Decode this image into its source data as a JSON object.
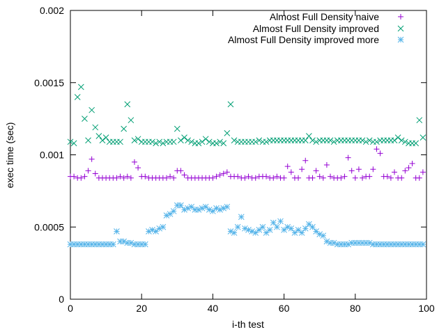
{
  "chart_data": {
    "type": "scatter",
    "title": "",
    "xlabel": "i-th test",
    "ylabel": "exec time (sec)",
    "xlim": [
      0,
      100
    ],
    "ylim": [
      0,
      0.002
    ],
    "x_ticks": [
      0,
      20,
      40,
      60,
      80,
      100
    ],
    "x_tick_labels": [
      "0",
      "20",
      "40",
      "60",
      "80",
      "100"
    ],
    "y_ticks": [
      0,
      0.0005,
      0.001,
      0.0015,
      0.002
    ],
    "y_tick_labels": [
      "0",
      "0.0005",
      "0.001",
      "0.0015",
      "0.002"
    ],
    "grid": false,
    "legend_position": "top-right",
    "series": [
      {
        "name": "Almost Full Density naive",
        "marker": "plus",
        "color": "#9400d3",
        "x": [
          0,
          1,
          2,
          3,
          4,
          5,
          6,
          7,
          8,
          9,
          10,
          11,
          12,
          13,
          14,
          15,
          16,
          17,
          18,
          19,
          20,
          21,
          22,
          23,
          24,
          25,
          26,
          27,
          28,
          29,
          30,
          31,
          32,
          33,
          34,
          35,
          36,
          37,
          38,
          39,
          40,
          41,
          42,
          43,
          44,
          45,
          46,
          47,
          48,
          49,
          50,
          51,
          52,
          53,
          54,
          55,
          56,
          57,
          58,
          59,
          60,
          61,
          62,
          63,
          64,
          65,
          66,
          67,
          68,
          69,
          70,
          71,
          72,
          73,
          74,
          75,
          76,
          77,
          78,
          79,
          80,
          81,
          82,
          83,
          84,
          85,
          86,
          87,
          88,
          89,
          90,
          91,
          92,
          93,
          94,
          95,
          96,
          97,
          98,
          99
        ],
        "y": [
          0.00085,
          0.00085,
          0.00084,
          0.00084,
          0.00085,
          0.00089,
          0.00097,
          0.00087,
          0.00084,
          0.00084,
          0.00084,
          0.00084,
          0.00084,
          0.00084,
          0.00085,
          0.00084,
          0.00085,
          0.00084,
          0.00095,
          0.00091,
          0.00085,
          0.00085,
          0.00084,
          0.00084,
          0.00084,
          0.00084,
          0.00084,
          0.00084,
          0.00085,
          0.00084,
          0.00089,
          0.00089,
          0.00086,
          0.00084,
          0.00084,
          0.00084,
          0.00084,
          0.00084,
          0.00084,
          0.00084,
          0.00084,
          0.00085,
          0.00086,
          0.00087,
          0.00088,
          0.00085,
          0.00085,
          0.00085,
          0.00084,
          0.00084,
          0.00085,
          0.00084,
          0.00084,
          0.00085,
          0.00085,
          0.00085,
          0.00084,
          0.00084,
          0.00085,
          0.00084,
          0.00084,
          0.00092,
          0.00088,
          0.00084,
          0.00084,
          0.0009,
          0.00096,
          0.00084,
          0.00084,
          0.00089,
          0.00085,
          0.00084,
          0.00093,
          0.00085,
          0.00084,
          0.00084,
          0.00084,
          0.00085,
          0.00098,
          0.00089,
          0.00084,
          0.0009,
          0.00084,
          0.00085,
          0.00085,
          0.0009,
          0.00104,
          0.00101,
          0.00085,
          0.00085,
          0.00084,
          0.00088,
          0.00084,
          0.00084,
          0.00089,
          0.00091,
          0.00094,
          0.00084,
          0.00084,
          0.00088
        ]
      },
      {
        "name": "Almost Full Density improved",
        "marker": "cross",
        "color": "#009e73",
        "x": [
          0,
          1,
          2,
          3,
          4,
          5,
          6,
          7,
          8,
          9,
          10,
          11,
          12,
          13,
          14,
          15,
          16,
          17,
          18,
          19,
          20,
          21,
          22,
          23,
          24,
          25,
          26,
          27,
          28,
          29,
          30,
          31,
          32,
          33,
          34,
          35,
          36,
          37,
          38,
          39,
          40,
          41,
          42,
          43,
          44,
          45,
          46,
          47,
          48,
          49,
          50,
          51,
          52,
          53,
          54,
          55,
          56,
          57,
          58,
          59,
          60,
          61,
          62,
          63,
          64,
          65,
          66,
          67,
          68,
          69,
          70,
          71,
          72,
          73,
          74,
          75,
          76,
          77,
          78,
          79,
          80,
          81,
          82,
          83,
          84,
          85,
          86,
          87,
          88,
          89,
          90,
          91,
          92,
          93,
          94,
          95,
          96,
          97,
          98,
          99
        ],
        "y": [
          0.00109,
          0.00108,
          0.0014,
          0.00147,
          0.00125,
          0.0011,
          0.00131,
          0.00119,
          0.00113,
          0.0011,
          0.00112,
          0.00109,
          0.00109,
          0.00109,
          0.00109,
          0.00118,
          0.00135,
          0.00124,
          0.0011,
          0.00111,
          0.00109,
          0.00109,
          0.00109,
          0.00109,
          0.00108,
          0.00109,
          0.00108,
          0.00109,
          0.00109,
          0.00109,
          0.00118,
          0.0011,
          0.00112,
          0.0011,
          0.00109,
          0.00108,
          0.00108,
          0.00109,
          0.00111,
          0.00109,
          0.00108,
          0.00108,
          0.00109,
          0.00108,
          0.00115,
          0.00135,
          0.0011,
          0.00109,
          0.00109,
          0.00109,
          0.00109,
          0.00109,
          0.00109,
          0.0011,
          0.00109,
          0.00109,
          0.0011,
          0.0011,
          0.0011,
          0.0011,
          0.0011,
          0.0011,
          0.0011,
          0.0011,
          0.0011,
          0.0011,
          0.0011,
          0.00113,
          0.0011,
          0.00109,
          0.0011,
          0.0011,
          0.0011,
          0.0011,
          0.00109,
          0.0011,
          0.0011,
          0.0011,
          0.0011,
          0.0011,
          0.0011,
          0.0011,
          0.0011,
          0.00109,
          0.0011,
          0.00109,
          0.00109,
          0.0011,
          0.0011,
          0.0011,
          0.0011,
          0.0011,
          0.00112,
          0.0011,
          0.00109,
          0.00108,
          0.00108,
          0.00108,
          0.00124,
          0.00112
        ]
      },
      {
        "name": "Almost Full Density improved more",
        "marker": "star",
        "color": "#56b4e9",
        "x": [
          0,
          1,
          2,
          3,
          4,
          5,
          6,
          7,
          8,
          9,
          10,
          11,
          12,
          13,
          14,
          15,
          16,
          17,
          18,
          19,
          20,
          21,
          22,
          23,
          24,
          25,
          26,
          27,
          28,
          29,
          30,
          31,
          32,
          33,
          34,
          35,
          36,
          37,
          38,
          39,
          40,
          41,
          42,
          43,
          44,
          45,
          46,
          47,
          48,
          49,
          50,
          51,
          52,
          53,
          54,
          55,
          56,
          57,
          58,
          59,
          60,
          61,
          62,
          63,
          64,
          65,
          66,
          67,
          68,
          69,
          70,
          71,
          72,
          73,
          74,
          75,
          76,
          77,
          78,
          79,
          80,
          81,
          82,
          83,
          84,
          85,
          86,
          87,
          88,
          89,
          90,
          91,
          92,
          93,
          94,
          95,
          96,
          97,
          98,
          99
        ],
        "y": [
          0.00038,
          0.00038,
          0.00038,
          0.00038,
          0.00038,
          0.00038,
          0.00038,
          0.00038,
          0.00038,
          0.00038,
          0.00038,
          0.00038,
          0.00038,
          0.00047,
          0.0004,
          0.0004,
          0.00039,
          0.00039,
          0.00038,
          0.00038,
          0.00038,
          0.00038,
          0.00047,
          0.00048,
          0.00047,
          0.00049,
          0.0005,
          0.00058,
          0.00059,
          0.00061,
          0.00065,
          0.00065,
          0.00062,
          0.00063,
          0.00064,
          0.00062,
          0.00062,
          0.00063,
          0.00064,
          0.00062,
          0.00061,
          0.00063,
          0.00062,
          0.00063,
          0.00064,
          0.00047,
          0.00046,
          0.0005,
          0.00057,
          0.00049,
          0.00048,
          0.00047,
          0.00046,
          0.00048,
          0.0005,
          0.00046,
          0.00048,
          0.00053,
          0.0005,
          0.00054,
          0.00048,
          0.0005,
          0.00049,
          0.00046,
          0.00048,
          0.00046,
          0.00049,
          0.00052,
          0.0005,
          0.00047,
          0.00045,
          0.00044,
          0.0004,
          0.00039,
          0.00039,
          0.00038,
          0.00038,
          0.00038,
          0.00038,
          0.00039,
          0.00039,
          0.00039,
          0.00039,
          0.00039,
          0.00039,
          0.00038,
          0.00038,
          0.00038,
          0.00038,
          0.00038,
          0.00038,
          0.00038,
          0.00038,
          0.00038,
          0.00038,
          0.00038,
          0.00038,
          0.00038,
          0.00038,
          0.00038
        ]
      }
    ]
  }
}
